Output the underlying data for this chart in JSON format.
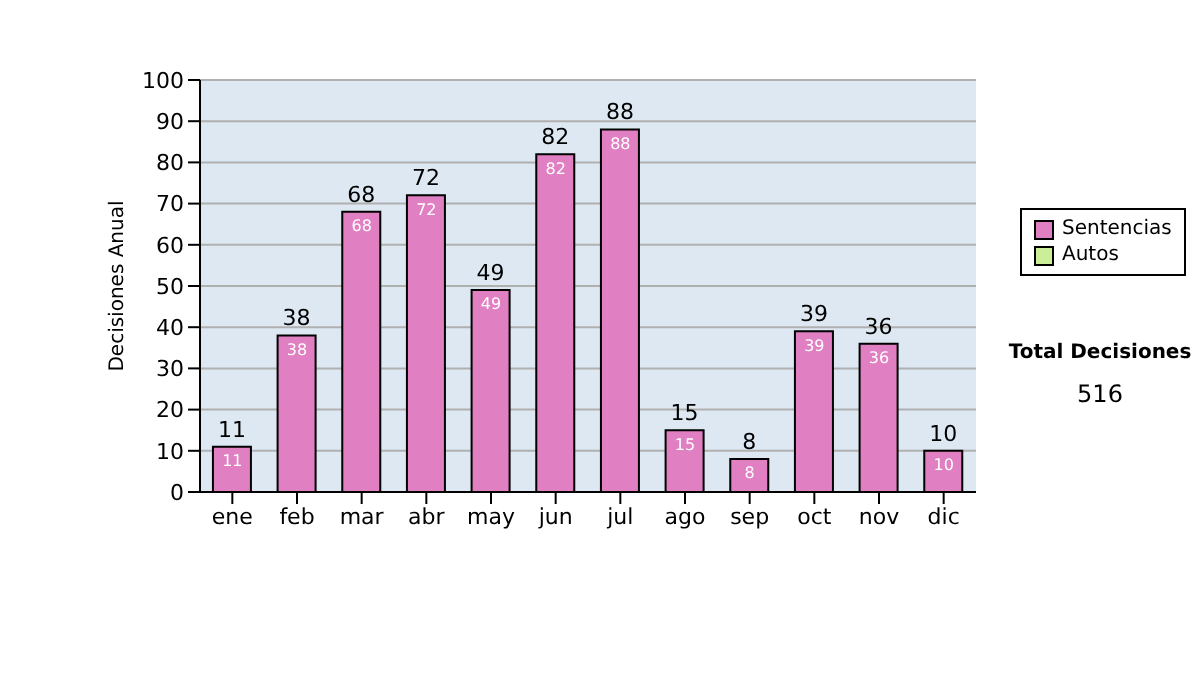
{
  "chart_data": {
    "type": "bar",
    "ylabel": "Decisiones Anual",
    "categories": [
      "ene",
      "feb",
      "mar",
      "abr",
      "may",
      "jun",
      "jul",
      "ago",
      "sep",
      "oct",
      "nov",
      "dic"
    ],
    "series": [
      {
        "name": "Sentencias",
        "color": "#e07fc2",
        "values": [
          11,
          38,
          68,
          72,
          49,
          82,
          88,
          15,
          8,
          39,
          36,
          10
        ]
      },
      {
        "name": "Autos",
        "color": "#ccee99",
        "values": [
          null,
          null,
          null,
          null,
          null,
          null,
          null,
          null,
          null,
          null,
          null,
          null
        ]
      }
    ],
    "ylim": [
      0,
      100
    ],
    "yticks": [
      0,
      10,
      20,
      30,
      40,
      50,
      60,
      70,
      80,
      90,
      100
    ],
    "grid": "y",
    "legend": "right",
    "data_labels": true,
    "annotations": [
      "Total Decisiones",
      "516",
      {
        "text": "11",
        "x": "ene",
        "y": 11
      },
      {
        "text": "38",
        "x": "feb",
        "y": 38
      },
      {
        "text": "68",
        "x": "mar",
        "y": 68
      },
      {
        "text": "72",
        "x": "abr",
        "y": 72
      },
      {
        "text": "49",
        "x": "may",
        "y": 49
      },
      {
        "text": "82",
        "x": "jun",
        "y": 82
      },
      {
        "text": "88",
        "x": "jul",
        "y": 88
      },
      {
        "text": "15",
        "x": "ago",
        "y": 15
      },
      {
        "text": "8",
        "x": "sep",
        "y": 8
      },
      {
        "text": "39",
        "x": "oct",
        "y": 39
      },
      {
        "text": "36",
        "x": "nov",
        "y": 36
      },
      {
        "text": "10",
        "x": "dic",
        "y": 10
      }
    ]
  }
}
